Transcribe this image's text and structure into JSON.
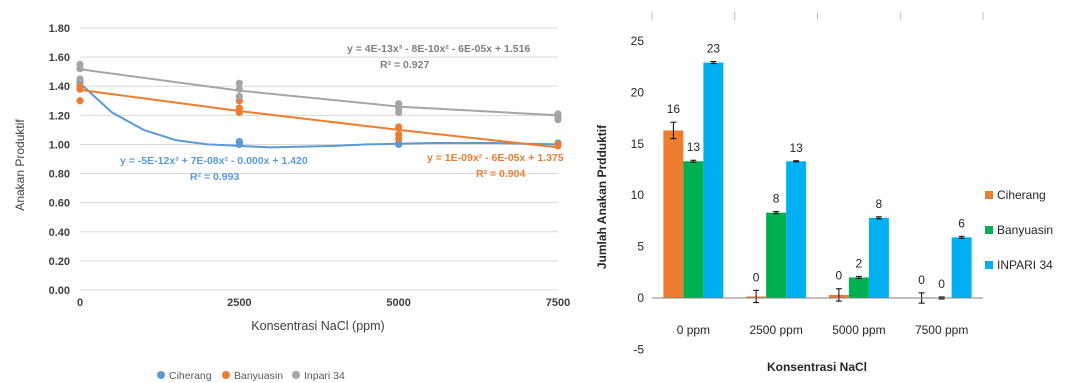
{
  "chart_data": [
    {
      "type": "scatter",
      "ylabel": "Anakan Produktif",
      "xlabel": "Konsentrasi NaCl (ppm)",
      "ylim": [
        0,
        1.8
      ],
      "xlim": [
        0,
        7500
      ],
      "x_ticks": [
        0,
        2500,
        5000,
        7500
      ],
      "y_ticks": [
        "0.00",
        "0.20",
        "0.40",
        "0.60",
        "0.80",
        "1.00",
        "1.20",
        "1.40",
        "1.60",
        "1.80"
      ],
      "legend_position": "bottom",
      "series": [
        {
          "name": "Ciherang",
          "color": "#5B9BD5",
          "points": [
            [
              0,
              1.43
            ],
            [
              0,
              1.4
            ],
            [
              0,
              1.38
            ],
            [
              2500,
              1.0
            ],
            [
              2500,
              1.02
            ],
            [
              2500,
              1.01
            ],
            [
              5000,
              1.0
            ],
            [
              5000,
              1.01
            ],
            [
              7500,
              1.0
            ],
            [
              7500,
              1.01
            ]
          ],
          "trend": [
            [
              0,
              1.42
            ],
            [
              500,
              1.22
            ],
            [
              1000,
              1.1
            ],
            [
              1500,
              1.03
            ],
            [
              2000,
              1.0
            ],
            [
              2500,
              0.99
            ],
            [
              3000,
              0.98
            ],
            [
              3500,
              0.985
            ],
            [
              4000,
              0.99
            ],
            [
              4500,
              1.0
            ],
            [
              5000,
              1.005
            ],
            [
              5500,
              1.01
            ],
            [
              6000,
              1.01
            ],
            [
              6500,
              1.01
            ],
            [
              7000,
              1.005
            ],
            [
              7500,
              1.0
            ]
          ],
          "equation": "y = -5E-12x³ + 7E-08x² - 0.000x + 1.420",
          "r2": "R² = 0.993"
        },
        {
          "name": "Banyuasin",
          "color": "#ED7D31",
          "points": [
            [
              0,
              1.3
            ],
            [
              0,
              1.4
            ],
            [
              0,
              1.38
            ],
            [
              2500,
              1.22
            ],
            [
              2500,
              1.25
            ],
            [
              2500,
              1.3
            ],
            [
              5000,
              1.04
            ],
            [
              5000,
              1.07
            ],
            [
              5000,
              1.12
            ],
            [
              7500,
              1.0
            ],
            [
              7500,
              0.99
            ]
          ],
          "trend": [
            [
              0,
              1.375
            ],
            [
              2500,
              1.23
            ],
            [
              5000,
              1.1
            ],
            [
              7500,
              0.98
            ]
          ],
          "equation": "y = 1E-09x² - 6E-05x + 1.375",
          "r2": "R² = 0.904"
        },
        {
          "name": "Inpari 34",
          "color": "#A5A5A5",
          "points": [
            [
              0,
              1.52
            ],
            [
              0,
              1.55
            ],
            [
              0,
              1.45
            ],
            [
              2500,
              1.38
            ],
            [
              2500,
              1.42
            ],
            [
              2500,
              1.33
            ],
            [
              5000,
              1.28
            ],
            [
              5000,
              1.25
            ],
            [
              5000,
              1.22
            ],
            [
              7500,
              1.21
            ],
            [
              7500,
              1.19
            ],
            [
              7500,
              1.17
            ]
          ],
          "trend": [
            [
              0,
              1.516
            ],
            [
              2500,
              1.37
            ],
            [
              5000,
              1.26
            ],
            [
              7500,
              1.2
            ]
          ],
          "equation": "y = 4E-13x³ - 8E-10x² - 6E-05x + 1.516",
          "r2": "R² = 0.927"
        }
      ]
    },
    {
      "type": "bar",
      "ylabel": "Jumlah Anakan Prdduktif",
      "xlabel": "Konsentrasi NaCl",
      "ylim": [
        -5,
        25
      ],
      "y_ticks": [
        "-5",
        "0",
        "5",
        "10",
        "15",
        "20",
        "25"
      ],
      "categories": [
        "0 ppm",
        "2500 ppm",
        "5000 ppm",
        "7500 ppm"
      ],
      "legend_position": "right",
      "series": [
        {
          "name": "Ciherang",
          "color": "#ED7D31",
          "values": [
            16.3,
            0.15,
            0.3,
            0
          ],
          "labels": [
            "16",
            "0",
            "0",
            "0"
          ],
          "errors": [
            0.8,
            0.6,
            0.6,
            0.5
          ]
        },
        {
          "name": "Banyuasin",
          "color": "#00B050",
          "values": [
            13.3,
            8.3,
            2.0,
            0
          ],
          "labels": [
            "13",
            "8",
            "2",
            "0"
          ],
          "errors": [
            0.1,
            0.1,
            0.1,
            0.1
          ]
        },
        {
          "name": "INPARI 34",
          "color": "#00B0F0",
          "values": [
            22.9,
            13.3,
            7.8,
            5.9
          ],
          "labels": [
            "23",
            "13",
            "8",
            "6"
          ],
          "errors": [
            0.1,
            0.05,
            0.1,
            0.1
          ]
        }
      ]
    }
  ]
}
